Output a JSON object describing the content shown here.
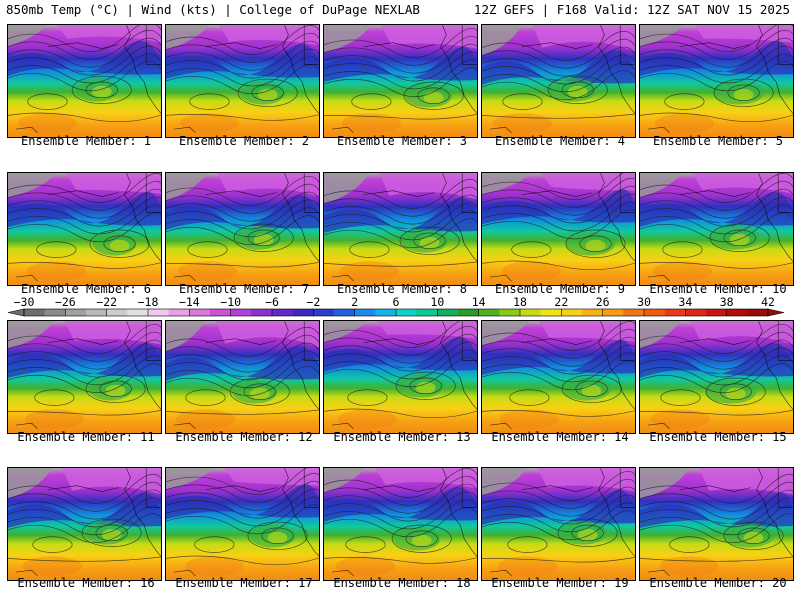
{
  "header": {
    "left": "850mb Temp (°C) | Wind (kts) | College of DuPage NEXLAB",
    "right": "12Z GEFS | F168 Valid: 12Z SAT NOV 15 2025"
  },
  "chart_data": {
    "type": "heatmap",
    "title": "850mb Temp (°C) | Wind (kts)",
    "source": "College of DuPage NEXLAB",
    "model": "12Z GEFS",
    "forecast_hour": "F168",
    "valid": "12Z SAT NOV 15 2025",
    "panels": [
      "Ensemble Member: 1",
      "Ensemble Member: 2",
      "Ensemble Member: 3",
      "Ensemble Member: 4",
      "Ensemble Member: 5",
      "Ensemble Member: 6",
      "Ensemble Member: 7",
      "Ensemble Member: 8",
      "Ensemble Member: 9",
      "Ensemble Member: 10",
      "Ensemble Member: 11",
      "Ensemble Member: 12",
      "Ensemble Member: 13",
      "Ensemble Member: 14",
      "Ensemble Member: 15",
      "Ensemble Member: 16",
      "Ensemble Member: 17",
      "Ensemble Member: 18",
      "Ensemble Member: 19",
      "Ensemble Member: 20"
    ],
    "colorbar": {
      "min": -30,
      "max": 42,
      "step": 2,
      "ticks": [
        -30,
        -26,
        -22,
        -18,
        -14,
        -10,
        -6,
        -2,
        2,
        6,
        10,
        14,
        18,
        22,
        26,
        30,
        34,
        38,
        42
      ],
      "tick_labels": [
        "−30",
        "−26",
        "−22",
        "−18",
        "−14",
        "−10",
        "−6",
        "−2",
        "2",
        "6",
        "10",
        "14",
        "18",
        "22",
        "26",
        "30",
        "34",
        "38",
        "42"
      ],
      "colors": [
        "#6e6e6e",
        "#8a8a8a",
        "#a0a0a0",
        "#b8b8b8",
        "#cccccc",
        "#e0e0e0",
        "#f0c8f0",
        "#e8a0e8",
        "#dc78dc",
        "#cc50d8",
        "#b040d8",
        "#8c30d0",
        "#6428c8",
        "#3c28c0",
        "#2840c8",
        "#2060e0",
        "#1c8ce8",
        "#10b4e8",
        "#10d0c8",
        "#10c896",
        "#10b060",
        "#289c28",
        "#50b020",
        "#8cc814",
        "#c8dc14",
        "#f0e614",
        "#f8d014",
        "#f8b414",
        "#f89c14",
        "#f07814",
        "#f05a14",
        "#e83c14",
        "#dc2814",
        "#c81414",
        "#b40a0a",
        "#9a0a0a"
      ]
    }
  }
}
